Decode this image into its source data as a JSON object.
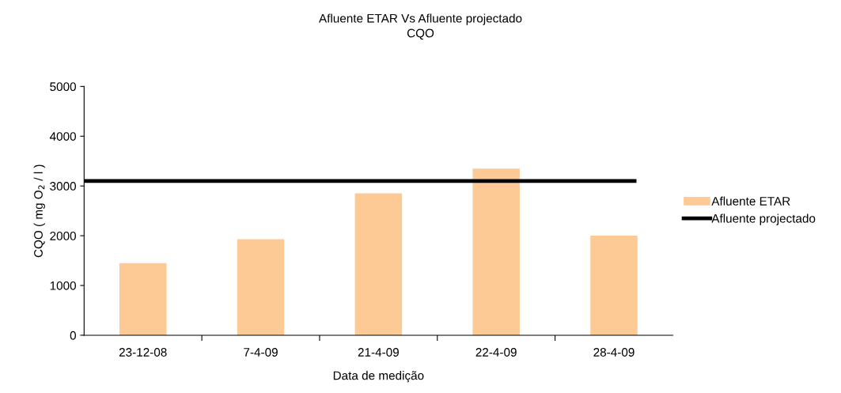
{
  "chart_data": {
    "type": "bar",
    "title": "Afluente ETAR Vs Afluente projectado\nCQO",
    "xlabel": "Data de medição",
    "ylabel": "CQO ( mg O$_{2}$ / l )",
    "categories": [
      "23-12-08",
      "7-4-09",
      "21-4-09",
      "22-4-09",
      "28-4-09"
    ],
    "series": [
      {
        "name": "Afluente ETAR",
        "color": "#fdca96",
        "values": [
          1450,
          1930,
          2850,
          3350,
          2000
        ]
      }
    ],
    "ref_lines": [
      {
        "axis": "y",
        "value": 3100,
        "label": "Afluente projectado",
        "color": "#000000",
        "line_style": "solid"
      }
    ],
    "ylim": [
      0,
      5000
    ],
    "yticks": [
      0,
      1000,
      2000,
      3000,
      4000,
      5000
    ],
    "grid": false,
    "legend": "right"
  }
}
